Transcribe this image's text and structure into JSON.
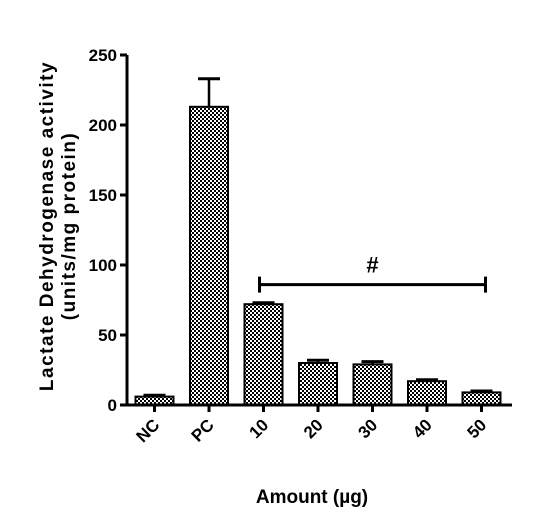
{
  "chart_data": {
    "type": "bar",
    "title": "",
    "xlabel": "Amount (µg)",
    "ylabel_line1": "Lactate Dehydrogenase activity",
    "ylabel_line2": "(units/mg protein)",
    "categories": [
      "NC",
      "PC",
      "10",
      "20",
      "30",
      "40",
      "50"
    ],
    "values": [
      6,
      213,
      72,
      30,
      29,
      17,
      9
    ],
    "errors": [
      1,
      20,
      1,
      2,
      2,
      1,
      1
    ],
    "ylim": [
      0,
      250
    ],
    "yticks": [
      0,
      50,
      100,
      150,
      200,
      250
    ],
    "ytick_labels": [
      "0",
      "50",
      "100",
      "150",
      "200",
      "250"
    ],
    "bar_pattern": "checkered",
    "grid": false,
    "annotations": [
      {
        "text": "#",
        "from_category": "10",
        "to_category": "50",
        "y": 86
      }
    ]
  }
}
